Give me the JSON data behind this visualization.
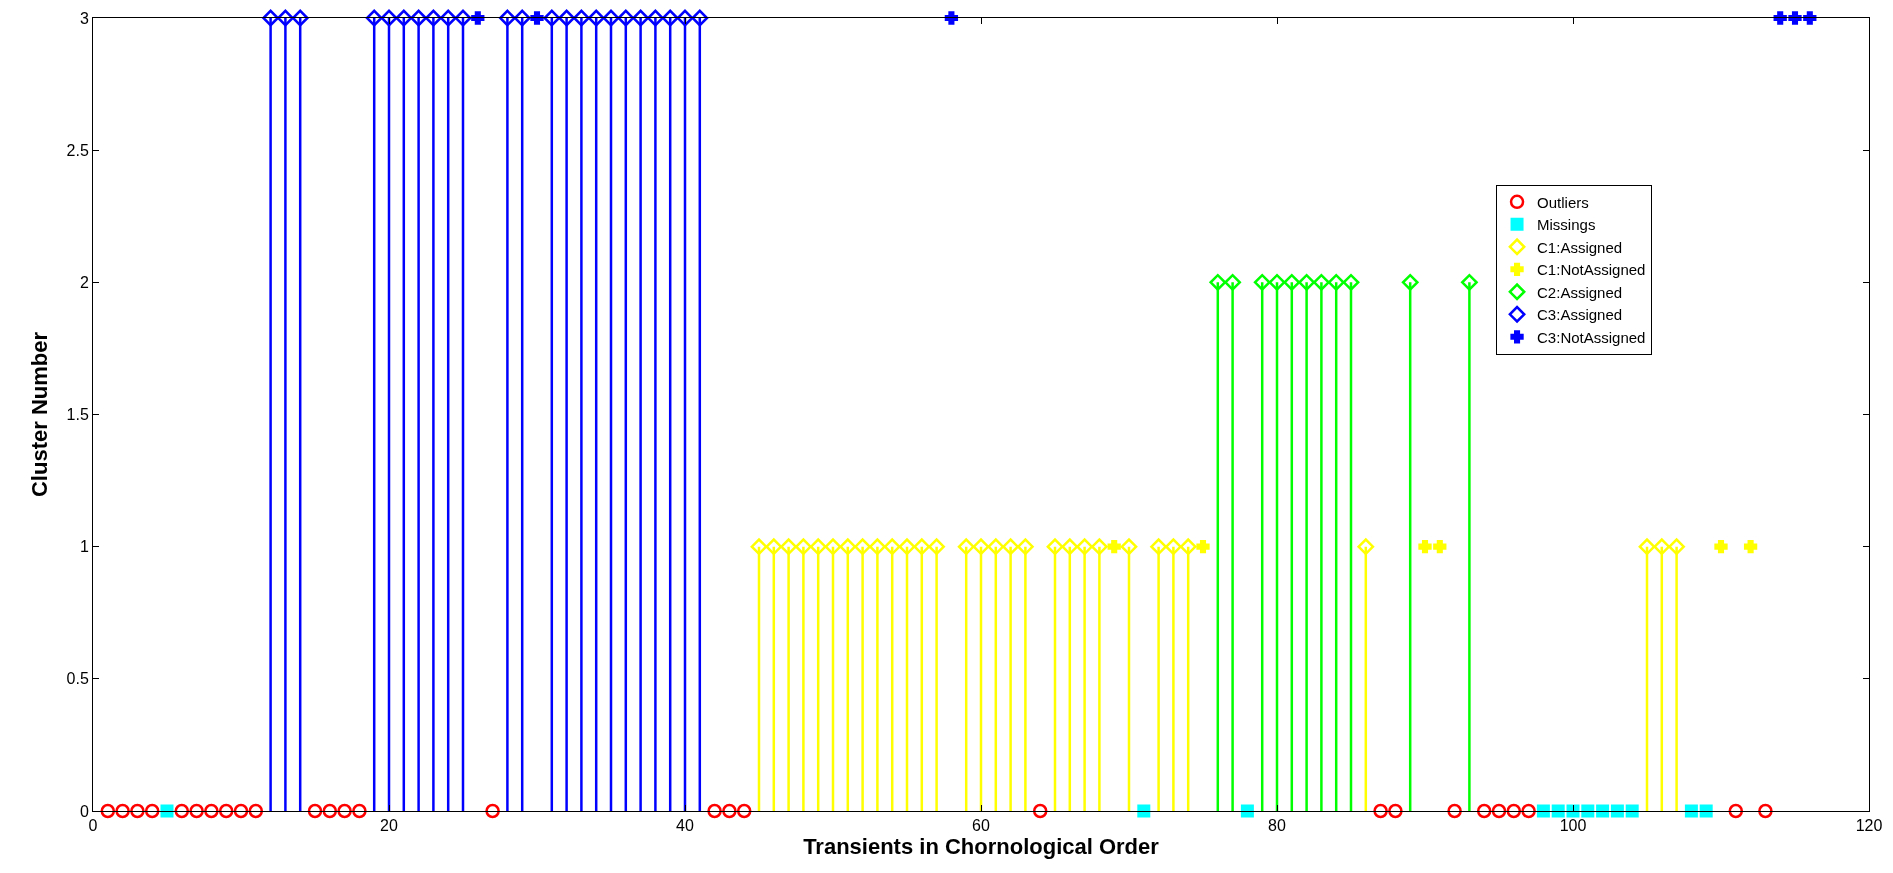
{
  "chart_data": {
    "type": "scatter",
    "xlabel": "Transients in Chornological Order",
    "ylabel": "Cluster Number",
    "xlim": [
      0,
      120
    ],
    "xticks": [
      0,
      20,
      40,
      60,
      80,
      100,
      120
    ],
    "ylim": [
      0,
      3
    ],
    "yticks": [
      0,
      0.5,
      1,
      1.5,
      2,
      2.5,
      3
    ],
    "legend": "top right",
    "series": [
      {
        "name": "Outliers",
        "marker": "circle",
        "color": "#ff0000",
        "x": [
          1,
          2,
          3,
          4,
          6,
          7,
          8,
          9,
          10,
          11,
          15,
          16,
          17,
          18,
          27,
          42,
          43,
          44,
          64,
          87,
          88,
          92,
          94,
          95,
          96,
          97,
          111,
          113
        ],
        "values": [
          0,
          0,
          0,
          0,
          0,
          0,
          0,
          0,
          0,
          0,
          0,
          0,
          0,
          0,
          0,
          0,
          0,
          0,
          0,
          0,
          0,
          0,
          0,
          0,
          0,
          0,
          0,
          0
        ]
      },
      {
        "name": "Missings",
        "marker": "square",
        "color": "#00ffff",
        "x": [
          5,
          71,
          78,
          98,
          99,
          100,
          101,
          102,
          103,
          104,
          108,
          109
        ],
        "values": [
          0,
          0,
          0,
          0,
          0,
          0,
          0,
          0,
          0,
          0,
          0,
          0
        ]
      },
      {
        "name": "C1:Assigned",
        "type": "lollipop",
        "marker": "diamond",
        "color": "#ffff00",
        "x": [
          45,
          46,
          47,
          48,
          49,
          50,
          51,
          52,
          53,
          54,
          55,
          56,
          57,
          59,
          60,
          61,
          62,
          63,
          65,
          66,
          67,
          68,
          70,
          72,
          73,
          74,
          86,
          105,
          106,
          107
        ],
        "values": [
          1,
          1,
          1,
          1,
          1,
          1,
          1,
          1,
          1,
          1,
          1,
          1,
          1,
          1,
          1,
          1,
          1,
          1,
          1,
          1,
          1,
          1,
          1,
          1,
          1,
          1,
          1,
          1,
          1,
          1
        ]
      },
      {
        "name": "C1:NotAssigned",
        "marker": "cross",
        "color": "#ffff00",
        "x": [
          69,
          75,
          90,
          91,
          110,
          112
        ],
        "values": [
          1,
          1,
          1,
          1,
          1,
          1
        ]
      },
      {
        "name": "C2:Assigned",
        "type": "lollipop",
        "marker": "diamond",
        "color": "#00ff00",
        "x": [
          76,
          77,
          79,
          80,
          81,
          82,
          83,
          84,
          85,
          89,
          93
        ],
        "values": [
          2,
          2,
          2,
          2,
          2,
          2,
          2,
          2,
          2,
          2,
          2
        ]
      },
      {
        "name": "C3:Assigned",
        "type": "lollipop",
        "marker": "diamond",
        "color": "#0000ff",
        "x": [
          12,
          13,
          14,
          19,
          20,
          21,
          22,
          23,
          24,
          25,
          28,
          29,
          31,
          32,
          33,
          34,
          35,
          36,
          37,
          38,
          39,
          40,
          41
        ],
        "values": [
          3,
          3,
          3,
          3,
          3,
          3,
          3,
          3,
          3,
          3,
          3,
          3,
          3,
          3,
          3,
          3,
          3,
          3,
          3,
          3,
          3,
          3,
          3
        ]
      },
      {
        "name": "C3:NotAssigned",
        "marker": "cross",
        "color": "#0000ff",
        "x": [
          26,
          30,
          58,
          114,
          115,
          116
        ],
        "values": [
          3,
          3,
          3,
          3,
          3,
          3
        ]
      }
    ]
  }
}
